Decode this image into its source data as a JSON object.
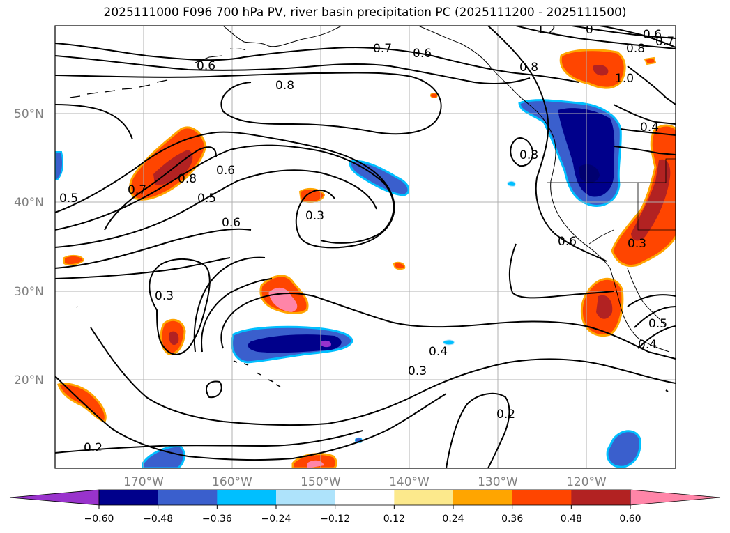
{
  "title": "2025111000 F096 700 hPa PV, river basin precipitation PC (2025111200 - 2025111500)",
  "latitude_labels": [
    "50°N",
    "40°N",
    "30°N",
    "20°N"
  ],
  "longitude_labels": [
    "170°W",
    "160°W",
    "150°W",
    "140°W",
    "130°W",
    "120°W"
  ],
  "colorbar": {
    "ticks": [
      "−0.60",
      "−0.48",
      "−0.36",
      "−0.24",
      "−0.12",
      "0.12",
      "0.24",
      "0.36",
      "0.48",
      "0.60"
    ],
    "colors": [
      "#9933cc",
      "#00008b",
      "#3a5fcd",
      "#00bfff",
      "#aee3fb",
      "#ffffff",
      "#fce98c",
      "#ffa500",
      "#ff4500",
      "#b22222",
      "#ff85a8"
    ]
  },
  "contour_labels": [
    "1.2",
    "0",
    "0.6",
    "0.7",
    "0.8",
    "0.7",
    "0.6",
    "0.6",
    "0.8",
    "0.8",
    "1.0",
    "0.4",
    "0.8",
    "0.6",
    "0.5",
    "0.7",
    "0.8",
    "0.5",
    "0.6",
    "0.3",
    "0.3",
    "0.6",
    "0.3",
    "0.4",
    "0.3",
    "0.2",
    "0.2",
    "0.4",
    "0.5"
  ],
  "colors": {
    "frame": "#000000",
    "grid": "#b0b0b0",
    "contour": "#000000",
    "coast": "#000000"
  }
}
